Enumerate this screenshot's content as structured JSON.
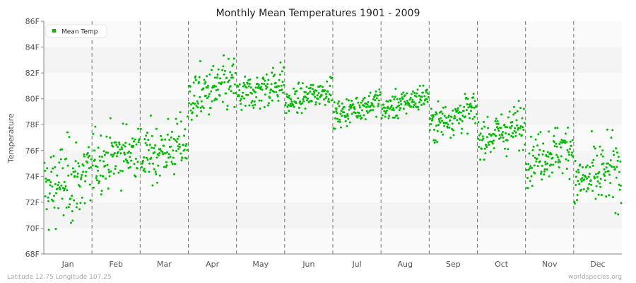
{
  "chart_data": {
    "type": "scatter",
    "title": "Monthly Mean Temperatures 1901 - 2009",
    "xlabel": "",
    "ylabel": "Temperature",
    "ylim": [
      68,
      86
    ],
    "y_ticks": [
      "68F",
      "70F",
      "72F",
      "74F",
      "76F",
      "78F",
      "80F",
      "82F",
      "84F",
      "86F"
    ],
    "y_tick_values": [
      68,
      70,
      72,
      74,
      76,
      78,
      80,
      82,
      84,
      86
    ],
    "categories": [
      "Jan",
      "Feb",
      "Mar",
      "Apr",
      "May",
      "Jun",
      "Jul",
      "Aug",
      "Sep",
      "Oct",
      "Nov",
      "Dec"
    ],
    "legend": {
      "entries": [
        "Mean Temp"
      ],
      "placement": "top-left"
    },
    "grid": true,
    "years": [
      1901,
      2009
    ],
    "series": [
      {
        "name": "Mean Temp",
        "color": "#00bb00",
        "monthly_summary": [
          {
            "month": "Jan",
            "mean": 73.5,
            "sd": 1.9,
            "min": 68.0,
            "max": 78.4
          },
          {
            "month": "Feb",
            "mean": 75.6,
            "sd": 1.3,
            "min": 72.3,
            "max": 78.5
          },
          {
            "month": "Mar",
            "mean": 76.0,
            "sd": 1.3,
            "min": 72.8,
            "max": 79.3
          },
          {
            "month": "Apr",
            "mean": 80.6,
            "sd": 1.2,
            "min": 77.3,
            "max": 84.2
          },
          {
            "month": "May",
            "mean": 80.7,
            "sd": 0.9,
            "min": 78.5,
            "max": 83.3
          },
          {
            "month": "Jun",
            "mean": 80.2,
            "sd": 0.6,
            "min": 78.9,
            "max": 81.7
          },
          {
            "month": "Jul",
            "mean": 79.3,
            "sd": 0.6,
            "min": 77.6,
            "max": 80.8
          },
          {
            "month": "Aug",
            "mean": 79.7,
            "sd": 0.6,
            "min": 78.5,
            "max": 81.5
          },
          {
            "month": "Sep",
            "mean": 78.6,
            "sd": 0.8,
            "min": 76.6,
            "max": 81.1
          },
          {
            "month": "Oct",
            "mean": 77.4,
            "sd": 1.0,
            "min": 75.3,
            "max": 80.4
          },
          {
            "month": "Nov",
            "mean": 75.8,
            "sd": 1.1,
            "min": 73.1,
            "max": 78.4
          },
          {
            "month": "Dec",
            "mean": 74.0,
            "sd": 1.5,
            "min": 70.3,
            "max": 78.1
          }
        ]
      }
    ]
  },
  "footer": {
    "left": "Latitude 12.75 Longitude 107.25",
    "right": "worldspecies.org"
  }
}
